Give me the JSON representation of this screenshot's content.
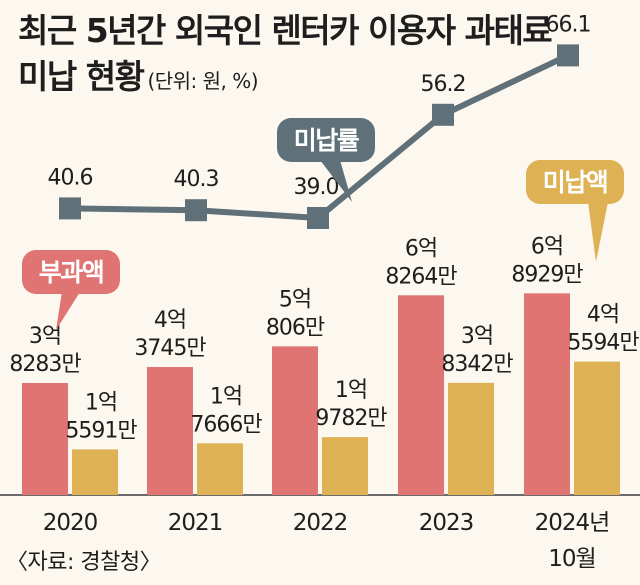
{
  "title": "최근 5년간 외국인 렌터카 이용자 과태료",
  "title_line2": "미납 현황",
  "unit": "(단위: 원, %)",
  "source": "〈자료: 경찰청〉",
  "colors": {
    "imposed": "#e07473",
    "unpaid": "#deb254",
    "line": "#5f7078",
    "callout_imposed": "#e07473",
    "callout_rate": "#5f7078",
    "callout_unpaid": "#deb254"
  },
  "chart_data": {
    "type": "bar",
    "categories": [
      "2020",
      "2021",
      "2022",
      "2023",
      "2024년 10월"
    ],
    "series": [
      {
        "name": "부과액",
        "values": [
          382830000,
          437450000,
          508060000,
          682640000,
          689290000
        ]
      },
      {
        "name": "미납액",
        "values": [
          155910000,
          176660000,
          197820000,
          383420000,
          455940000
        ]
      }
    ],
    "line_series": {
      "name": "미납률",
      "values": [
        40.6,
        40.3,
        39.0,
        56.2,
        66.1
      ]
    },
    "bar_labels": {
      "imposed": [
        [
          "3억",
          "8283만"
        ],
        [
          "4억",
          "3745만"
        ],
        [
          "5억",
          "806만"
        ],
        [
          "6억",
          "8264만"
        ],
        [
          "6억",
          "8929만"
        ]
      ],
      "unpaid": [
        [
          "1억",
          "5591만"
        ],
        [
          "1억",
          "7666만"
        ],
        [
          "1억",
          "9782만"
        ],
        [
          "3억",
          "8342만"
        ],
        [
          "4억",
          "5594만"
        ]
      ]
    },
    "rate_labels": [
      "40.6",
      "40.3",
      "39.0",
      "56.2",
      "66.1"
    ],
    "x_labels": [
      [
        "2020"
      ],
      [
        "2021"
      ],
      [
        "2022"
      ],
      [
        "2023"
      ],
      [
        "2024년",
        "10월"
      ]
    ],
    "callouts": {
      "imposed": "부과액",
      "rate": "미납률",
      "unpaid": "미납액"
    },
    "xlabel": "",
    "ylabel": ""
  }
}
